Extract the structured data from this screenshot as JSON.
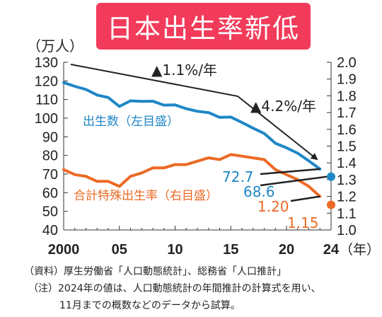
{
  "title": "日本出生率新低",
  "chart_data": {
    "type": "line",
    "x": [
      2000,
      2001,
      2002,
      2003,
      2004,
      2005,
      2006,
      2007,
      2008,
      2009,
      2010,
      2011,
      2012,
      2013,
      2014,
      2015,
      2016,
      2017,
      2018,
      2019,
      2020,
      2021,
      2022,
      2023
    ],
    "x_ticks": [
      "2000",
      "05",
      "10",
      "15",
      "20",
      "24"
    ],
    "x_tick_values": [
      2000,
      2005,
      2010,
      2015,
      2020,
      2024
    ],
    "xlabel": "（年）",
    "xlim": [
      2000,
      2024
    ],
    "y_left": {
      "label": "（万人）",
      "ticks": [
        40,
        50,
        60,
        70,
        80,
        90,
        100,
        110,
        120,
        130
      ],
      "ylim": [
        40,
        130
      ]
    },
    "y_right": {
      "ticks": [
        "1.0",
        "1.1",
        "1.2",
        "1.3",
        "1.4",
        "1.5",
        "1.6",
        "1.7",
        "1.8",
        "1.9",
        "2.0"
      ],
      "ylim": [
        1.0,
        2.0
      ]
    },
    "series": [
      {
        "name": "出生数（左目盛）",
        "axis": "left",
        "color": "#1f87c6",
        "values": [
          119.1,
          117.1,
          115.4,
          112.4,
          111.1,
          106.3,
          109.3,
          109.0,
          109.1,
          107.0,
          107.1,
          105.1,
          103.7,
          103.0,
          100.4,
          100.6,
          97.7,
          94.6,
          91.8,
          86.5,
          84.1,
          81.2,
          77.1,
          72.7
        ],
        "end_label": "72.7",
        "projection": {
          "x": 2024,
          "value": 68.6,
          "label": "68.6"
        }
      },
      {
        "name": "合計特殊出生率（右目盛）",
        "axis": "right",
        "color": "#ec6a25",
        "values": [
          1.36,
          1.33,
          1.32,
          1.29,
          1.29,
          1.26,
          1.32,
          1.34,
          1.37,
          1.37,
          1.39,
          1.39,
          1.41,
          1.43,
          1.42,
          1.45,
          1.44,
          1.43,
          1.42,
          1.36,
          1.33,
          1.3,
          1.26,
          1.2
        ],
        "end_label": "1.20",
        "projection": {
          "x": 2024,
          "value": 1.15,
          "label": "1.15"
        }
      }
    ],
    "annotations": [
      {
        "text": "▲1.1%/年"
      },
      {
        "text": "▲4.2%/年"
      }
    ]
  },
  "notes": {
    "source": "（資料）厚生労働省「人口動態統計」、総務省「人口推計」",
    "note_line1": "（注）2024年の値は、人口動態統計の年間推計の計算式を用い、",
    "note_line2": "11月までの概数などのデータから試算。"
  }
}
